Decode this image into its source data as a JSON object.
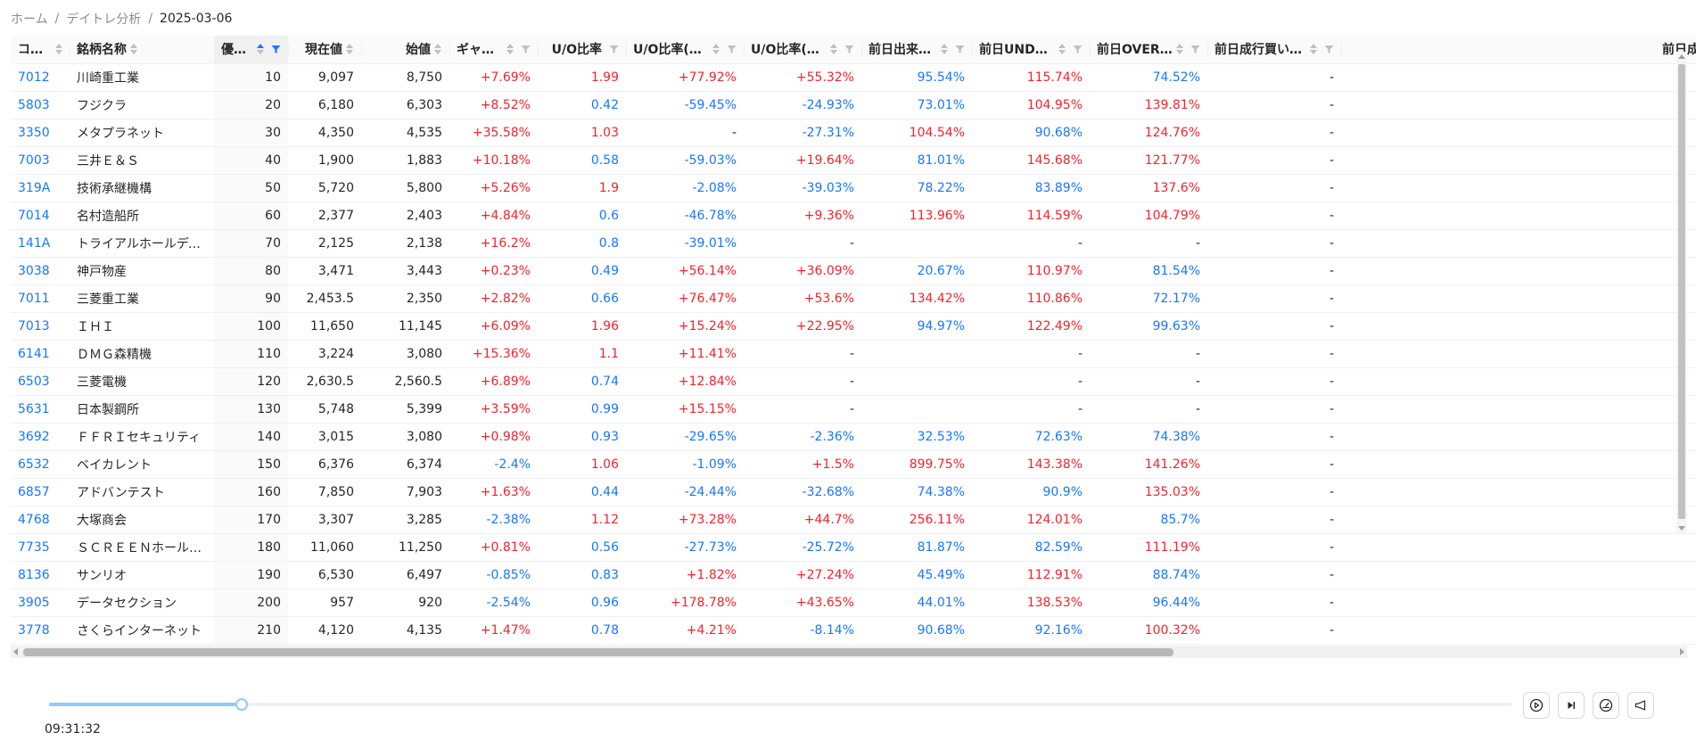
{
  "breadcrumb": {
    "home": "ホーム",
    "section": "デイトレ分析",
    "current": "2025-03-06"
  },
  "columns": [
    {
      "key": "code",
      "label": "コード",
      "sortable": true,
      "filter": false
    },
    {
      "key": "name",
      "label": "銘柄名称",
      "sortable": true,
      "filter": false
    },
    {
      "key": "priority",
      "label": "優先順",
      "sortable": true,
      "filter": true,
      "sorted": "asc"
    },
    {
      "key": "price",
      "label": "現在値",
      "sortable": true,
      "filter": false
    },
    {
      "key": "open",
      "label": "始値",
      "sortable": true,
      "filter": false
    },
    {
      "key": "gap",
      "label": "ギャップ率",
      "sortable": true,
      "filter": true
    },
    {
      "key": "uo",
      "label": "U/O比率",
      "sortable": false,
      "filter": true
    },
    {
      "key": "uo_close",
      "label": "U/O比率(対引け)",
      "sortable": true,
      "filter": true
    },
    {
      "key": "uo_prev",
      "label": "U/O比率(対前日)",
      "sortable": true,
      "filter": true
    },
    {
      "key": "vol_prev",
      "label": "前日出来高比率",
      "sortable": true,
      "filter": true
    },
    {
      "key": "under_prev",
      "label": "前日UNDER比率",
      "sortable": true,
      "filter": true
    },
    {
      "key": "over_prev",
      "label": "前日OVER比率",
      "sortable": true,
      "filter": true
    },
    {
      "key": "mkt_buy_prev",
      "label": "前日成行買い比率",
      "sortable": true,
      "filter": true
    },
    {
      "key": "mkt_sell_prev",
      "label": "前日成行売",
      "sortable": false,
      "filter": false
    }
  ],
  "rows": [
    {
      "code": "7012",
      "name": "川崎重工業",
      "priority": "10",
      "price": "9,097",
      "open": "8,750",
      "gap": "+7.69%",
      "uo": "1.99",
      "uo_close": "+77.92%",
      "uo_prev": "+55.32%",
      "vol_prev": "95.54%",
      "under_prev": "115.74%",
      "over_prev": "74.52%",
      "mkt_buy_prev": "-"
    },
    {
      "code": "5803",
      "name": "フジクラ",
      "priority": "20",
      "price": "6,180",
      "open": "6,303",
      "gap": "+8.52%",
      "uo": "0.42",
      "uo_close": "-59.45%",
      "uo_prev": "-24.93%",
      "vol_prev": "73.01%",
      "under_prev": "104.95%",
      "over_prev": "139.81%",
      "mkt_buy_prev": "-"
    },
    {
      "code": "3350",
      "name": "メタプラネット",
      "priority": "30",
      "price": "4,350",
      "open": "4,535",
      "gap": "+35.58%",
      "uo": "1.03",
      "uo_close": "-",
      "uo_prev": "-27.31%",
      "vol_prev": "104.54%",
      "under_prev": "90.68%",
      "over_prev": "124.76%",
      "mkt_buy_prev": "-"
    },
    {
      "code": "7003",
      "name": "三井Ｅ＆Ｓ",
      "priority": "40",
      "price": "1,900",
      "open": "1,883",
      "gap": "+10.18%",
      "uo": "0.58",
      "uo_close": "-59.03%",
      "uo_prev": "+19.64%",
      "vol_prev": "81.01%",
      "under_prev": "145.68%",
      "over_prev": "121.77%",
      "mkt_buy_prev": "-"
    },
    {
      "code": "319A",
      "name": "技術承継機構",
      "priority": "50",
      "price": "5,720",
      "open": "5,800",
      "gap": "+5.26%",
      "uo": "1.9",
      "uo_close": "-2.08%",
      "uo_prev": "-39.03%",
      "vol_prev": "78.22%",
      "under_prev": "83.89%",
      "over_prev": "137.6%",
      "mkt_buy_prev": "-"
    },
    {
      "code": "7014",
      "name": "名村造船所",
      "priority": "60",
      "price": "2,377",
      "open": "2,403",
      "gap": "+4.84%",
      "uo": "0.6",
      "uo_close": "-46.78%",
      "uo_prev": "+9.36%",
      "vol_prev": "113.96%",
      "under_prev": "114.59%",
      "over_prev": "104.79%",
      "mkt_buy_prev": "-"
    },
    {
      "code": "141A",
      "name": "トライアルホールディングス",
      "priority": "70",
      "price": "2,125",
      "open": "2,138",
      "gap": "+16.2%",
      "uo": "0.8",
      "uo_close": "-39.01%",
      "uo_prev": "-",
      "vol_prev": "",
      "under_prev": "-",
      "over_prev": "-",
      "mkt_buy_prev": "-"
    },
    {
      "code": "3038",
      "name": "神戸物産",
      "priority": "80",
      "price": "3,471",
      "open": "3,443",
      "gap": "+0.23%",
      "uo": "0.49",
      "uo_close": "+56.14%",
      "uo_prev": "+36.09%",
      "vol_prev": "20.67%",
      "under_prev": "110.97%",
      "over_prev": "81.54%",
      "mkt_buy_prev": "-"
    },
    {
      "code": "7011",
      "name": "三菱重工業",
      "priority": "90",
      "price": "2,453.5",
      "open": "2,350",
      "gap": "+2.82%",
      "uo": "0.66",
      "uo_close": "+76.47%",
      "uo_prev": "+53.6%",
      "vol_prev": "134.42%",
      "under_prev": "110.86%",
      "over_prev": "72.17%",
      "mkt_buy_prev": "-"
    },
    {
      "code": "7013",
      "name": "ＩＨＩ",
      "priority": "100",
      "price": "11,650",
      "open": "11,145",
      "gap": "+6.09%",
      "uo": "1.96",
      "uo_close": "+15.24%",
      "uo_prev": "+22.95%",
      "vol_prev": "94.97%",
      "under_prev": "122.49%",
      "over_prev": "99.63%",
      "mkt_buy_prev": "-"
    },
    {
      "code": "6141",
      "name": "ＤＭＧ森精機",
      "priority": "110",
      "price": "3,224",
      "open": "3,080",
      "gap": "+15.36%",
      "uo": "1.1",
      "uo_close": "+11.41%",
      "uo_prev": "-",
      "vol_prev": "",
      "under_prev": "-",
      "over_prev": "-",
      "mkt_buy_prev": "-"
    },
    {
      "code": "6503",
      "name": "三菱電機",
      "priority": "120",
      "price": "2,630.5",
      "open": "2,560.5",
      "gap": "+6.89%",
      "uo": "0.74",
      "uo_close": "+12.84%",
      "uo_prev": "-",
      "vol_prev": "",
      "under_prev": "-",
      "over_prev": "-",
      "mkt_buy_prev": "-"
    },
    {
      "code": "5631",
      "name": "日本製鋼所",
      "priority": "130",
      "price": "5,748",
      "open": "5,399",
      "gap": "+3.59%",
      "uo": "0.99",
      "uo_close": "+15.15%",
      "uo_prev": "-",
      "vol_prev": "",
      "under_prev": "-",
      "over_prev": "-",
      "mkt_buy_prev": "-"
    },
    {
      "code": "3692",
      "name": "ＦＦＲＩセキュリティ",
      "priority": "140",
      "price": "3,015",
      "open": "3,080",
      "gap": "+0.98%",
      "uo": "0.93",
      "uo_close": "-29.65%",
      "uo_prev": "-2.36%",
      "vol_prev": "32.53%",
      "under_prev": "72.63%",
      "over_prev": "74.38%",
      "mkt_buy_prev": "-"
    },
    {
      "code": "6532",
      "name": "ベイカレント",
      "priority": "150",
      "price": "6,376",
      "open": "6,374",
      "gap": "-2.4%",
      "uo": "1.06",
      "uo_close": "-1.09%",
      "uo_prev": "+1.5%",
      "vol_prev": "899.75%",
      "under_prev": "143.38%",
      "over_prev": "141.26%",
      "mkt_buy_prev": "-"
    },
    {
      "code": "6857",
      "name": "アドバンテスト",
      "priority": "160",
      "price": "7,850",
      "open": "7,903",
      "gap": "+1.63%",
      "uo": "0.44",
      "uo_close": "-24.44%",
      "uo_prev": "-32.68%",
      "vol_prev": "74.38%",
      "under_prev": "90.9%",
      "over_prev": "135.03%",
      "mkt_buy_prev": "-"
    },
    {
      "code": "4768",
      "name": "大塚商会",
      "priority": "170",
      "price": "3,307",
      "open": "3,285",
      "gap": "-2.38%",
      "uo": "1.12",
      "uo_close": "+73.28%",
      "uo_prev": "+44.7%",
      "vol_prev": "256.11%",
      "under_prev": "124.01%",
      "over_prev": "85.7%",
      "mkt_buy_prev": "-"
    },
    {
      "code": "7735",
      "name": "ＳＣＲＥＥＮホールディン…",
      "priority": "180",
      "price": "11,060",
      "open": "11,250",
      "gap": "+0.81%",
      "uo": "0.56",
      "uo_close": "-27.73%",
      "uo_prev": "-25.72%",
      "vol_prev": "81.87%",
      "under_prev": "82.59%",
      "over_prev": "111.19%",
      "mkt_buy_prev": "-"
    },
    {
      "code": "8136",
      "name": "サンリオ",
      "priority": "190",
      "price": "6,530",
      "open": "6,497",
      "gap": "-0.85%",
      "uo": "0.83",
      "uo_close": "+1.82%",
      "uo_prev": "+27.24%",
      "vol_prev": "45.49%",
      "under_prev": "112.91%",
      "over_prev": "88.74%",
      "mkt_buy_prev": "-"
    },
    {
      "code": "3905",
      "name": "データセクション",
      "priority": "200",
      "price": "957",
      "open": "920",
      "gap": "-2.54%",
      "uo": "0.96",
      "uo_close": "+178.78%",
      "uo_prev": "+43.65%",
      "vol_prev": "44.01%",
      "under_prev": "138.53%",
      "over_prev": "96.44%",
      "mkt_buy_prev": "-"
    },
    {
      "code": "3778",
      "name": "さくらインターネット",
      "priority": "210",
      "price": "4,120",
      "open": "4,135",
      "gap": "+1.47%",
      "uo": "0.78",
      "uo_close": "+4.21%",
      "uo_prev": "-8.14%",
      "vol_prev": "90.68%",
      "under_prev": "92.16%",
      "over_prev": "100.32%",
      "mkt_buy_prev": "-"
    }
  ],
  "colors": {
    "positive": "#f5222d",
    "negative": "#1677ff",
    "link": "#1677ff",
    "accent": "#91caff"
  },
  "player": {
    "time": "09:31:32",
    "progress": 0.1317,
    "controls": [
      "play-circle-icon",
      "step-forward-icon",
      "speedometer-icon",
      "announcement-icon"
    ]
  }
}
